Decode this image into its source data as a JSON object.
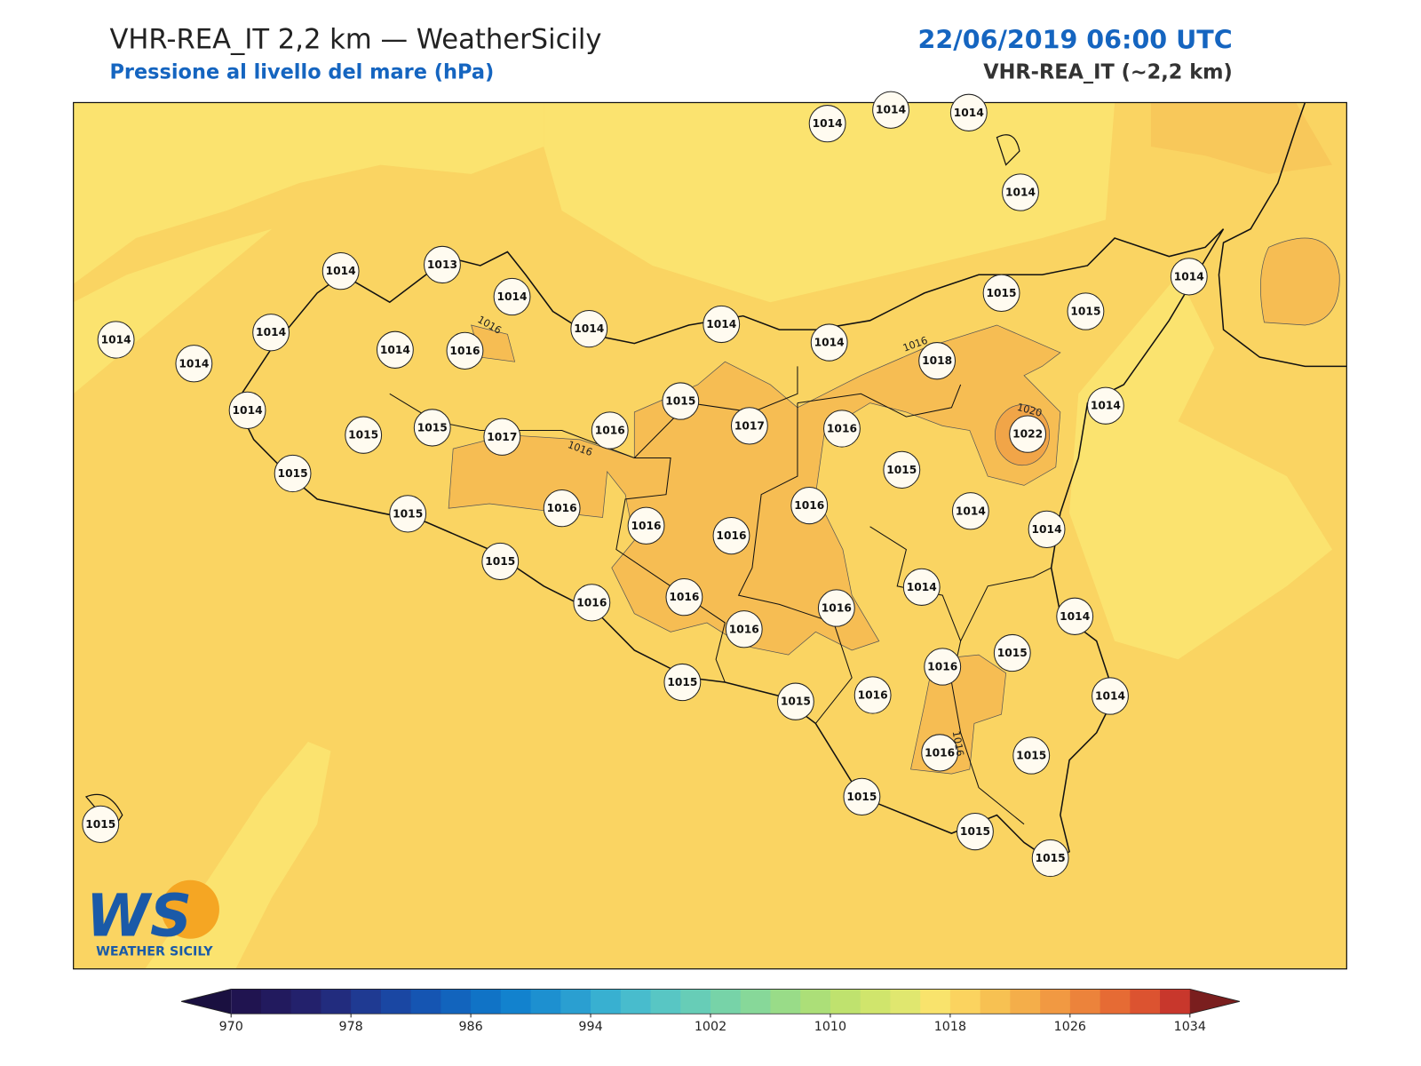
{
  "header": {
    "title": "VHR-REA_IT 2,2 km — WeatherSicily",
    "subtitle": "Pressione al livello del mare (hPa)",
    "datetime": "22/06/2019 06:00 UTC",
    "model": "VHR-REA_IT (~2,2 km)"
  },
  "stations": [
    1014,
    1014,
    1014,
    1014,
    1014,
    1013,
    1014,
    1014,
    1015,
    1015,
    1014,
    1014,
    1014,
    1016,
    1014,
    1014,
    1014,
    1014,
    1018,
    1014,
    1015,
    1014,
    1015,
    1015,
    1017,
    1016,
    1017,
    1016,
    1022,
    1015,
    1015,
    1016,
    1015,
    1016,
    1014,
    1016,
    1016,
    1014,
    1015,
    1014,
    1016,
    1016,
    1016,
    1014,
    1016,
    1015,
    1016,
    1015,
    1015,
    1016,
    1014,
    1016,
    1015,
    1015,
    1015,
    1015,
    1015
  ],
  "contour_labels": [
    1016,
    1016,
    1016,
    1020,
    1016
  ],
  "colorbar": {
    "min": 970,
    "max": 1034,
    "step": 2,
    "ticks": [
      970,
      978,
      986,
      994,
      1002,
      1010,
      1018,
      1026,
      1034
    ],
    "colors": [
      "#201450",
      "#221a5e",
      "#23216c",
      "#222c7e",
      "#1f3a92",
      "#1a47a3",
      "#1555b2",
      "#1264bd",
      "#1073c6",
      "#1282ce",
      "#1d90d0",
      "#2a9fd1",
      "#38b0d1",
      "#48bccd",
      "#58c6c4",
      "#67cdb7",
      "#77d3a8",
      "#87d899",
      "#99dc88",
      "#acdf78",
      "#bfe26e",
      "#d0e56c",
      "#e0e76f",
      "#f9e36c",
      "#fbd35f",
      "#f7c152",
      "#f4ae4a",
      "#f19942",
      "#ec833b",
      "#e66b34",
      "#dc5330",
      "#c8372c"
    ],
    "under": "#1a1040",
    "over": "#7a1e1e"
  },
  "logo": {
    "mark": "WS",
    "text": "WEATHER SICILY"
  }
}
